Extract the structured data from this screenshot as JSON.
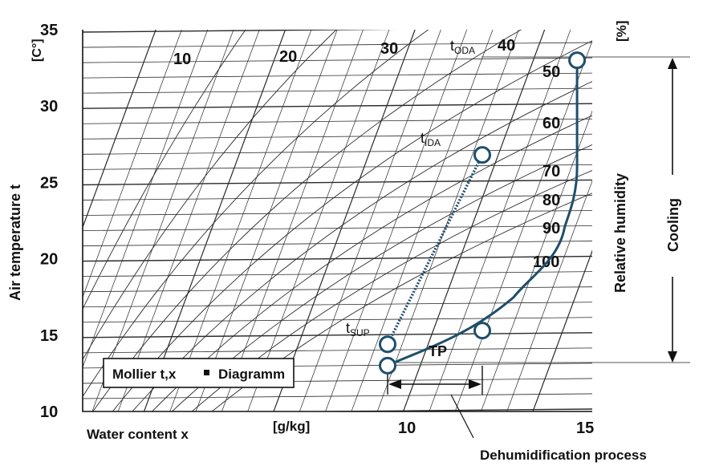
{
  "chart_data": {
    "type": "line",
    "title": "Mollier t,x - Diagramm",
    "legend_box": {
      "left": "Mollier t,x",
      "right": "Diagramm"
    },
    "y_axis": {
      "label": "Air temperature t",
      "unit": "[C°]",
      "range": [
        10,
        35
      ],
      "ticks": [
        "10",
        "15",
        "20",
        "25",
        "30",
        "35"
      ]
    },
    "x_axis": {
      "label": "Water content x",
      "unit": "[g/kg]",
      "range": [
        0,
        15
      ],
      "ticks": [
        "10",
        "15"
      ]
    },
    "relative_humidity": {
      "label": "Relative humidity",
      "unit": "[%]",
      "curve_labels": [
        "10",
        "20",
        "30",
        "40",
        "50",
        "60",
        "70",
        "80",
        "90",
        "100"
      ]
    },
    "points": [
      {
        "id": "t_ODA",
        "main": "t",
        "sub": "ODA",
        "x": 12.0,
        "t": 33.0
      },
      {
        "id": "t_IDA",
        "main": "t",
        "sub": "IDA",
        "x": 10.5,
        "t": 26.8
      },
      {
        "id": "t_SUP",
        "main": "t",
        "sub": "SUP",
        "x": 9.0,
        "t": 14.4
      },
      {
        "id": "TP",
        "main": "TP",
        "sub": "",
        "x": 10.5,
        "t": 15.3
      },
      {
        "id": "low",
        "main": "",
        "sub": "",
        "x": 9.0,
        "t": 13.0
      }
    ],
    "series": [
      {
        "name": "cooling-dehumidification",
        "style": "solid",
        "points": [
          [
            12.0,
            33.0
          ],
          [
            12.0,
            26.0
          ],
          [
            11.8,
            22.0
          ],
          [
            11.0,
            17.5
          ],
          [
            10.5,
            15.3
          ],
          [
            9.0,
            13.0
          ]
        ]
      },
      {
        "name": "supply-to-indoor",
        "style": "dotted",
        "points": [
          [
            9.0,
            14.4
          ],
          [
            10.5,
            26.8
          ]
        ]
      }
    ],
    "annotations": {
      "cooling": "Cooling",
      "dehumidification": "Dehumidification process"
    },
    "colors": {
      "process": "#1e4f6b",
      "grid": "#2a2a2a",
      "text": "#111111"
    }
  }
}
